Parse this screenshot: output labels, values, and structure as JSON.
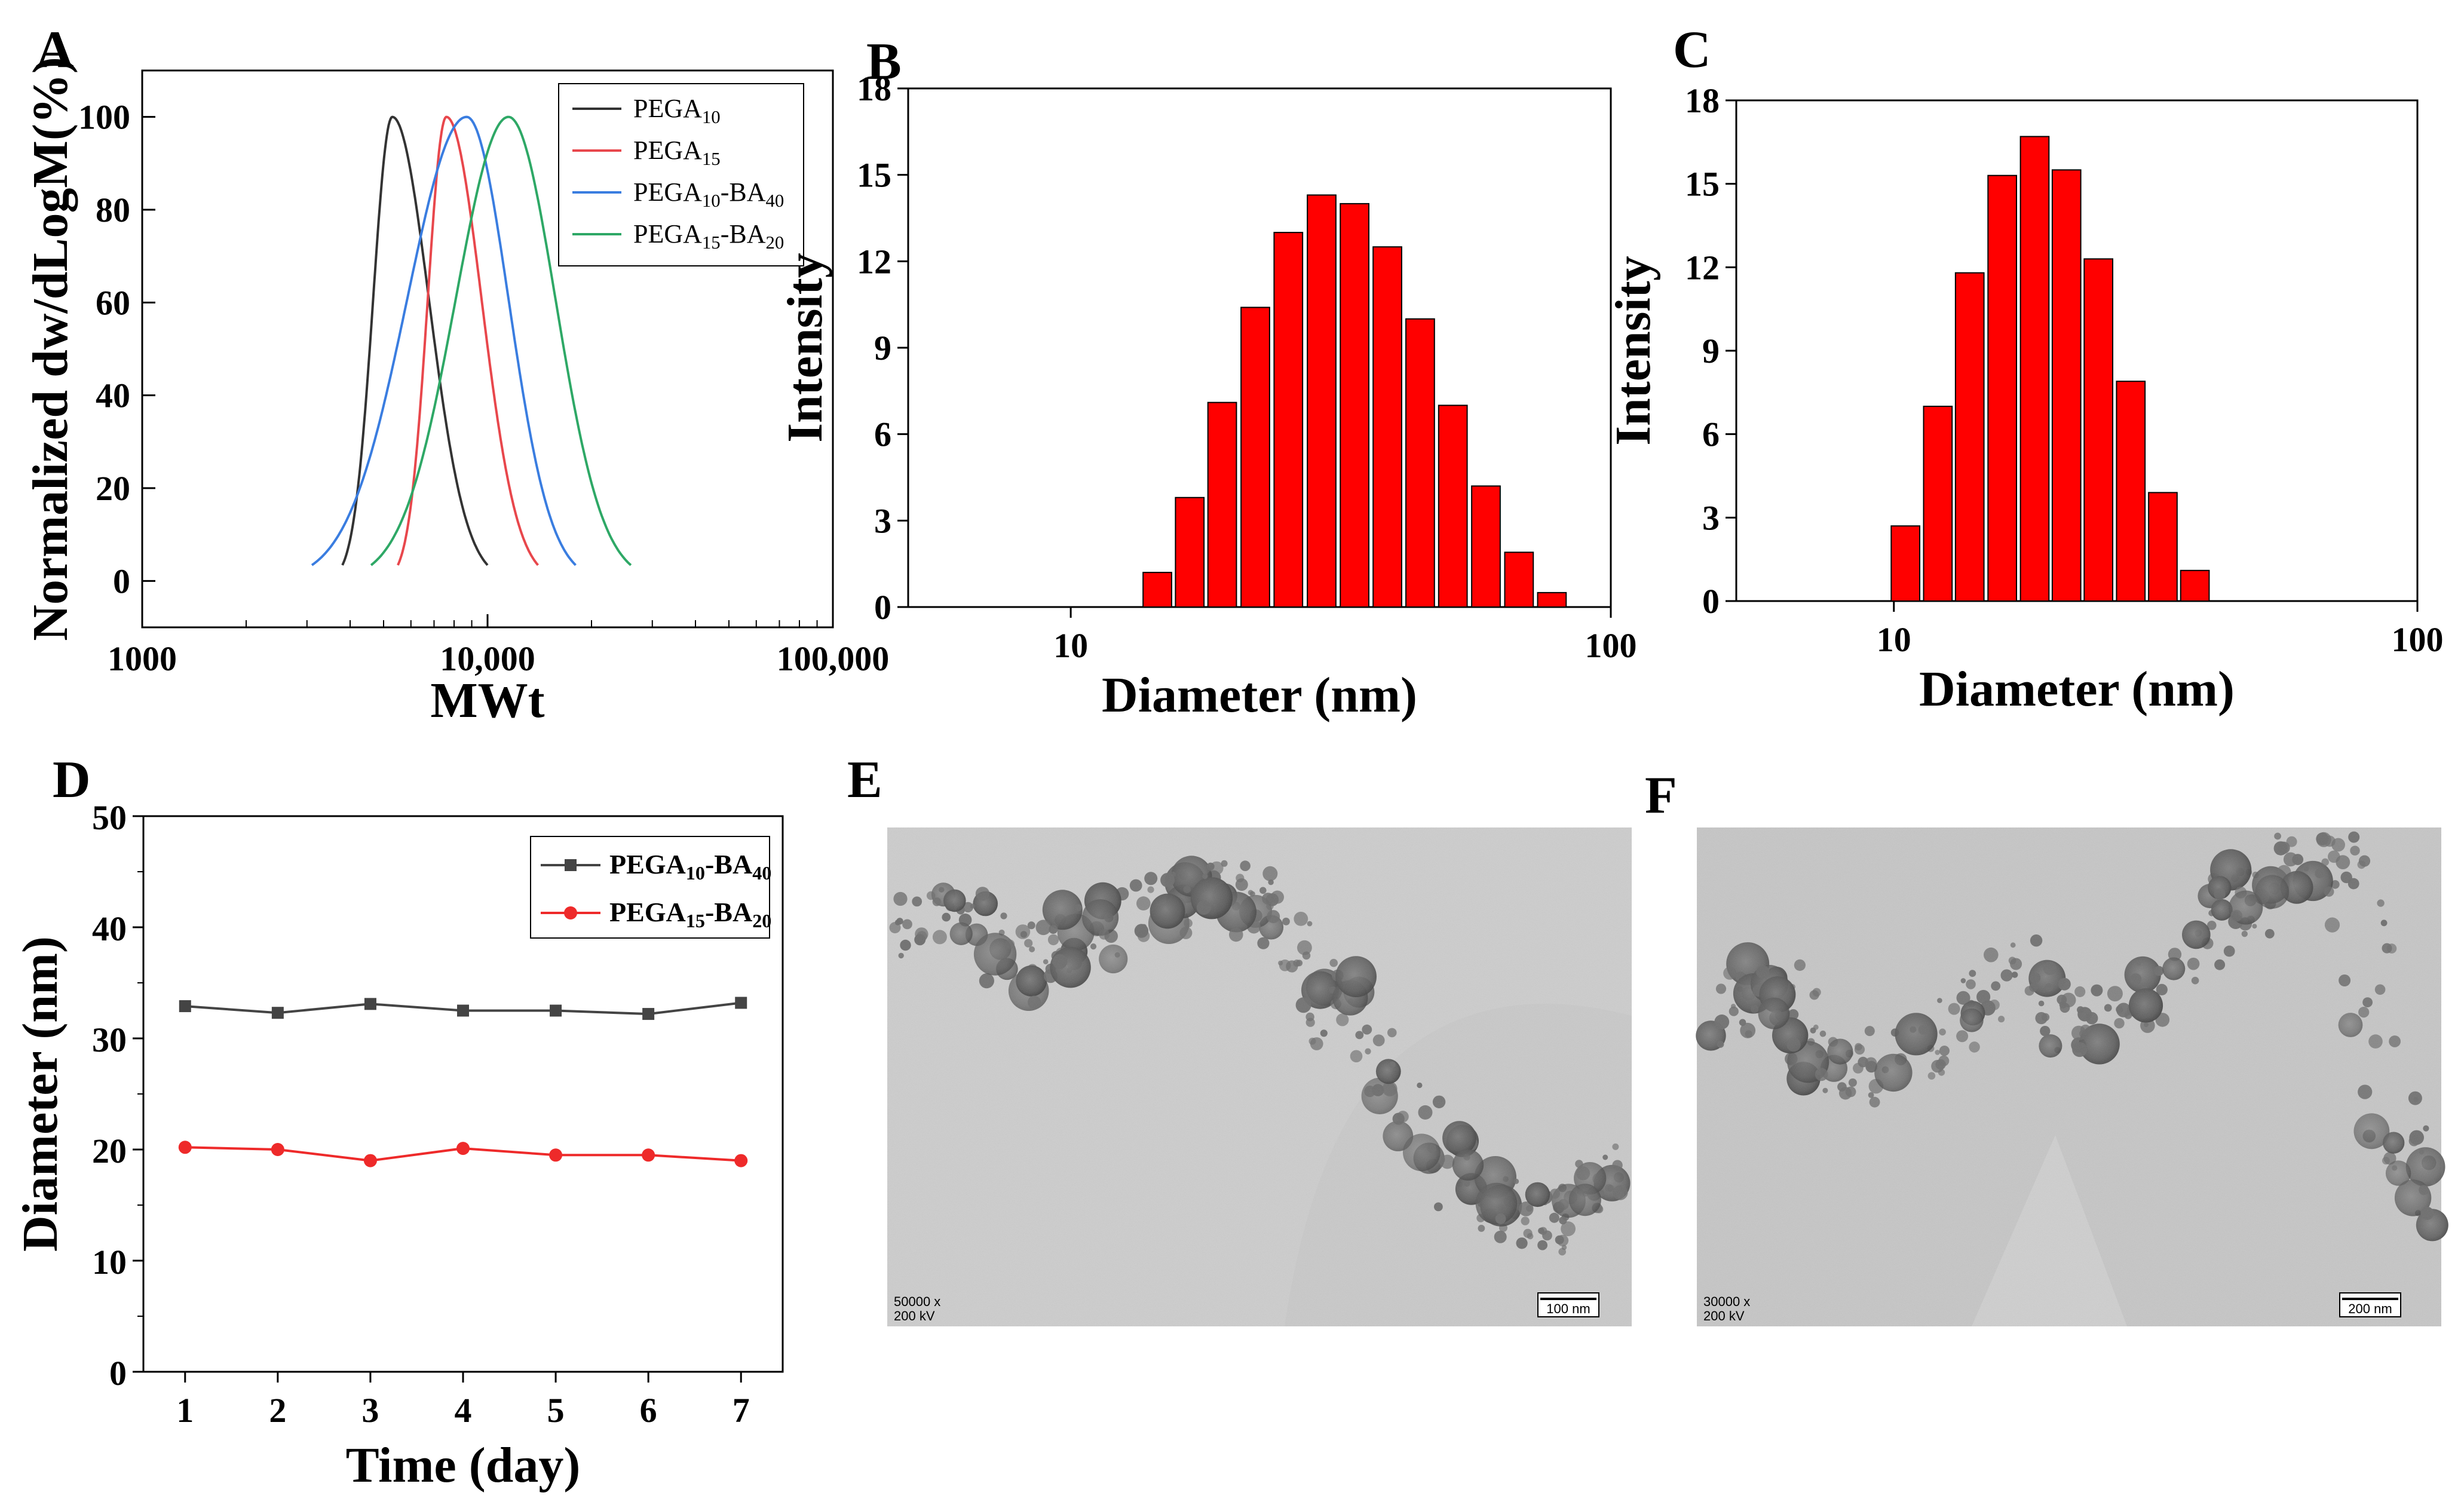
{
  "panels": {
    "A": "A",
    "B": "B",
    "C": "C",
    "D": "D",
    "E": "E",
    "F": "F"
  },
  "chart_data": [
    {
      "id": "A",
      "type": "line",
      "xlabel": "MWt",
      "ylabel": "Normalized dw/dLogM(%)",
      "xscale": "log",
      "xlim": [
        1000,
        100000
      ],
      "ylim": [
        -10,
        110
      ],
      "x_ticks": [
        1000,
        10000,
        100000
      ],
      "x_tick_labels": [
        "1000",
        "10,000",
        "100,000"
      ],
      "y_ticks": [
        0,
        20,
        40,
        60,
        80,
        100
      ],
      "y_tick_labels": [
        "0",
        "20",
        "40",
        "60",
        "80",
        "100"
      ],
      "legend_position": "top-right",
      "series": [
        {
          "name": "PEGA10",
          "label_main": "PEGA",
          "label_sub": "10",
          "label_main2": "",
          "label_sub2": "",
          "color": "#333333",
          "peak": 5300,
          "lo": 3800,
          "hi": 10000
        },
        {
          "name": "PEGA15",
          "label_main": "PEGA",
          "label_sub": "15",
          "label_main2": "",
          "label_sub2": "",
          "color": "#e8474c",
          "peak": 7600,
          "lo": 5500,
          "hi": 14000
        },
        {
          "name": "PEGA10-BA40",
          "label_main": "PEGA",
          "label_sub": "10",
          "label_main2": "-BA",
          "label_sub2": "40",
          "color": "#3a7de0",
          "peak": 8700,
          "lo": 3100,
          "hi": 18000
        },
        {
          "name": "PEGA15-BA20",
          "label_main": "PEGA",
          "label_sub": "15",
          "label_main2": "-BA",
          "label_sub2": "20",
          "color": "#2ea866",
          "peak": 11500,
          "lo": 4600,
          "hi": 26000
        }
      ]
    },
    {
      "id": "B",
      "type": "bar",
      "xlabel": "Diameter (nm)",
      "ylabel": "Intensity",
      "xscale": "log",
      "xlim": [
        5,
        100
      ],
      "ylim": [
        0,
        18
      ],
      "x_ticks": [
        10,
        100
      ],
      "x_tick_labels": [
        "10",
        "100"
      ],
      "y_ticks": [
        0,
        3,
        6,
        9,
        12,
        15,
        18
      ],
      "y_tick_labels": [
        "0",
        "3",
        "6",
        "9",
        "12",
        "15",
        "18"
      ],
      "bar_color": "#ff0000",
      "x": [
        13.5,
        15.5,
        17.8,
        20.5,
        23.6,
        27.2,
        31.3,
        36.0,
        41.4,
        47.6,
        54.8,
        63.1,
        72.6
      ],
      "values": [
        1.2,
        3.8,
        7.1,
        10.4,
        13.0,
        14.3,
        14.0,
        12.5,
        10.0,
        7.0,
        4.2,
        1.9,
        0.5
      ]
    },
    {
      "id": "C",
      "type": "bar",
      "xlabel": "Diameter (nm)",
      "ylabel": "Intensity",
      "xscale": "log",
      "xlim": [
        5,
        100
      ],
      "ylim": [
        0,
        18
      ],
      "x_ticks": [
        10,
        100
      ],
      "x_tick_labels": [
        "10",
        "100"
      ],
      "y_ticks": [
        0,
        3,
        6,
        9,
        12,
        15,
        18
      ],
      "y_tick_labels": [
        "0",
        "3",
        "6",
        "9",
        "12",
        "15",
        "18"
      ],
      "bar_color": "#ff0000",
      "x": [
        9.8,
        11.3,
        13.0,
        15.0,
        17.3,
        19.9,
        22.9,
        26.4,
        30.4,
        35.0,
        40.3
      ],
      "values": [
        2.7,
        7.0,
        11.8,
        15.3,
        16.7,
        15.5,
        12.3,
        7.9,
        3.9,
        1.1,
        0
      ]
    },
    {
      "id": "D",
      "type": "line",
      "xlabel": "Time (day)",
      "ylabel": "Diameter (nm)",
      "xlim": [
        0.55,
        7.45
      ],
      "ylim": [
        0,
        50
      ],
      "x_ticks": [
        1,
        2,
        3,
        4,
        5,
        6,
        7
      ],
      "x_tick_labels": [
        "1",
        "2",
        "3",
        "4",
        "5",
        "6",
        "7"
      ],
      "y_ticks": [
        0,
        10,
        20,
        30,
        40,
        50
      ],
      "y_tick_labels": [
        "0",
        "10",
        "20",
        "30",
        "40",
        "50"
      ],
      "legend_position": "top-right",
      "x": [
        1,
        2,
        3,
        4,
        5,
        6,
        7
      ],
      "series": [
        {
          "name": "PEGA10-BA40",
          "label_main": "PEGA",
          "label_sub": "10",
          "label_main2": "-BA",
          "label_sub2": "40",
          "color": "#444444",
          "marker": "square",
          "values": [
            32.9,
            32.3,
            33.1,
            32.5,
            32.5,
            32.2,
            33.2
          ]
        },
        {
          "name": "PEGA15-BA20",
          "label_main": "PEGA",
          "label_sub": "15",
          "label_main2": "-BA",
          "label_sub2": "20",
          "color": "#ee2a2a",
          "marker": "circle",
          "values": [
            20.2,
            20.0,
            19.0,
            20.1,
            19.5,
            19.5,
            19.0
          ]
        }
      ]
    }
  ],
  "tem": {
    "E": {
      "mag": "50000 x",
      "kv": "200 kV",
      "scale": "100 nm"
    },
    "F": {
      "mag": "30000 x",
      "kv": "200 kV",
      "scale": "200 nm"
    }
  }
}
